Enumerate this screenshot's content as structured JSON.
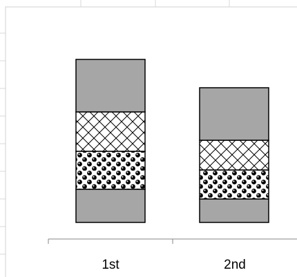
{
  "chart_data": {
    "type": "bar",
    "stacked": true,
    "categories": [
      "1st",
      "2nd"
    ],
    "series": [
      {
        "fill": "solid-gray",
        "color": "#a6a6a6",
        "values": [
          48,
          34
        ]
      },
      {
        "fill": "black-dots",
        "color": "#000000",
        "values": [
          55,
          42
        ]
      },
      {
        "fill": "diagonal-cross",
        "color": "#000000",
        "values": [
          57,
          43
        ]
      },
      {
        "fill": "solid-gray",
        "color": "#a6a6a6",
        "values": [
          76,
          76
        ]
      }
    ],
    "title": "",
    "xlabel": "",
    "ylabel": "",
    "ylim": [
      0,
      250
    ],
    "grid": false,
    "legend": "none",
    "y_axis_visible": false
  },
  "colors": {
    "sheet_grid": "#d9d9d9",
    "bar_outline": "#000000",
    "axis_line": "#868686",
    "plot_background": "#ffffff"
  }
}
